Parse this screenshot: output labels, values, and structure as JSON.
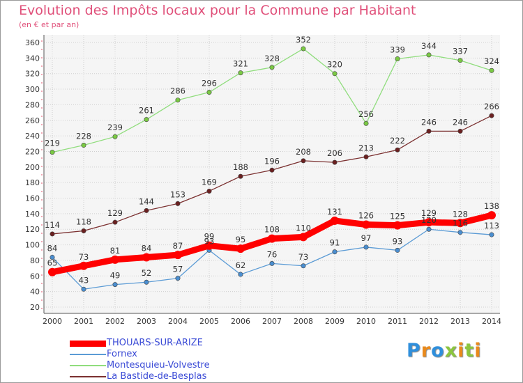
{
  "title": "Evolution des Impôts locaux pour la Commune par Habitant",
  "subtitle": "(en € et par an)",
  "logo": {
    "letters": [
      {
        "ch": "P",
        "color": "#2f8fdc"
      },
      {
        "ch": "r",
        "color": "#e98a1c"
      },
      {
        "ch": "o",
        "color": "#2f8fdc"
      },
      {
        "ch": "x",
        "color": "#8cc63f"
      },
      {
        "ch": "i",
        "color": "#e98a1c"
      },
      {
        "ch": "t",
        "color": "#8cc63f"
      },
      {
        "ch": "i",
        "color": "#e98a1c"
      }
    ]
  },
  "chart_data": {
    "type": "line",
    "title": "Evolution des Impôts locaux pour la Commune par Habitant",
    "subtitle": "(en € et par an)",
    "xlabel": "",
    "ylabel": "",
    "x": [
      "2000",
      "2001",
      "2002",
      "2003",
      "2004",
      "2005",
      "2006",
      "2007",
      "2008",
      "2009",
      "2010",
      "2011",
      "2012",
      "2013",
      "2014"
    ],
    "ylim": [
      20,
      360
    ],
    "yticks": [
      20,
      40,
      60,
      80,
      100,
      120,
      140,
      160,
      180,
      200,
      220,
      240,
      260,
      280,
      300,
      320,
      340,
      360
    ],
    "grid": true,
    "legend_position": "bottom-left",
    "series": [
      {
        "name": "THOUARS-SUR-ARIZE",
        "color": "#ff0000",
        "marker_color": "#ff0000",
        "values": [
          65,
          73,
          81,
          84,
          87,
          99,
          95,
          108,
          110,
          131,
          126,
          125,
          129,
          128,
          138
        ],
        "labels": [
          "65",
          "73",
          "81",
          "84",
          "87",
          "99",
          "95",
          "108",
          "110",
          "131",
          "126",
          "125",
          "129",
          "128",
          "138"
        ]
      },
      {
        "name": "Fornex",
        "color": "#5b9bd5",
        "marker_color": "#4a8ed0",
        "values": [
          84,
          43,
          49,
          52,
          57,
          93,
          62,
          76,
          73,
          91,
          97,
          93,
          120,
          116,
          113
        ],
        "labels": [
          "84",
          "43",
          "49",
          "52",
          "57",
          "93",
          "62",
          "76",
          "73",
          "91",
          "97",
          "93",
          "120",
          "116",
          "113"
        ]
      },
      {
        "name": "Montesquieu-Volvestre",
        "color": "#90dd7d",
        "marker_color": "#7ac943",
        "values": [
          219,
          228,
          239,
          261,
          286,
          296,
          321,
          328,
          352,
          320,
          256,
          339,
          344,
          337,
          324
        ],
        "labels": [
          "219",
          "228",
          "239",
          "261",
          "286",
          "296",
          "321",
          "328",
          "352",
          "320",
          "256",
          "339",
          "344",
          "337",
          "324"
        ]
      },
      {
        "name": "La Bastide-de-Besplas",
        "color": "#7b3030",
        "marker_color": "#6b2020",
        "values": [
          114,
          118,
          129,
          144,
          153,
          169,
          188,
          196,
          208,
          206,
          213,
          222,
          246,
          246,
          266
        ],
        "labels": [
          "114",
          "118",
          "129",
          "144",
          "153",
          "169",
          "188",
          "196",
          "208",
          "206",
          "213",
          "222",
          "246",
          "246",
          "266"
        ]
      }
    ]
  }
}
